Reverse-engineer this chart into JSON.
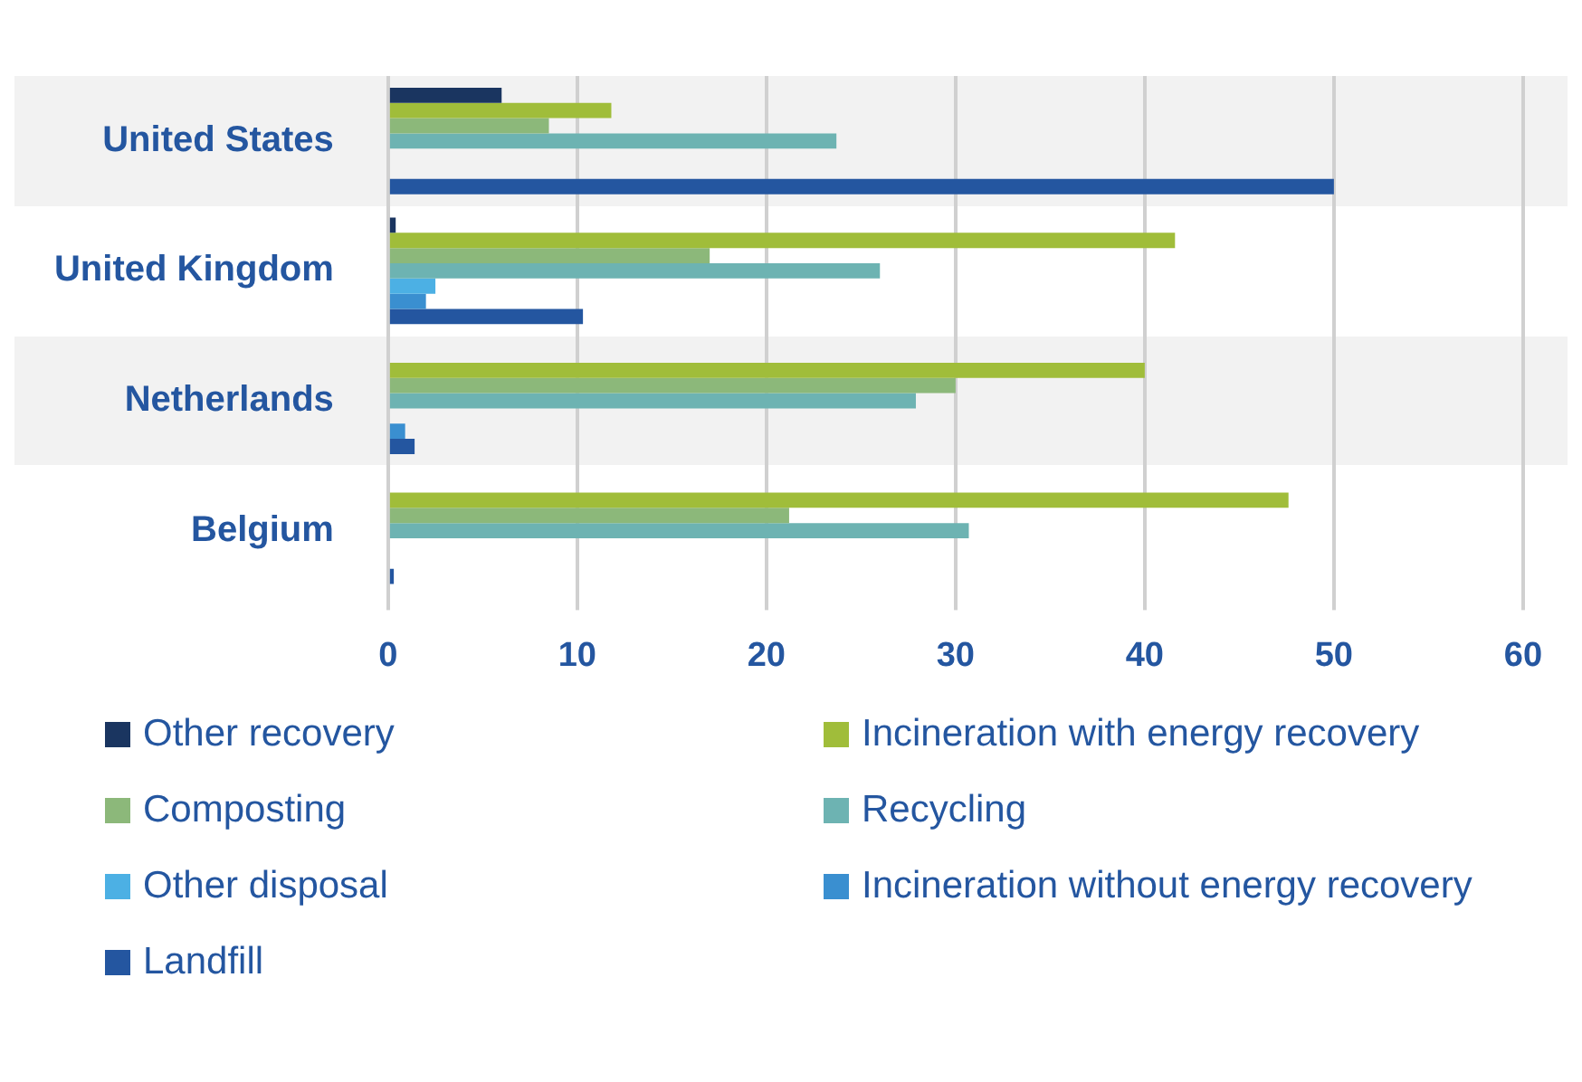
{
  "chart_data": {
    "type": "bar",
    "orientation": "horizontal",
    "categories": [
      "United States",
      "United Kingdom",
      "Netherlands",
      "Belgium"
    ],
    "series": [
      {
        "name": "Other recovery",
        "color": "#1a3560",
        "values": [
          6.0,
          0.4,
          0,
          0
        ]
      },
      {
        "name": "Incineration with energy recovery",
        "color": "#a0bd3a",
        "values": [
          11.8,
          41.6,
          40,
          47.6
        ]
      },
      {
        "name": "Composting",
        "color": "#8cb87a",
        "values": [
          8.5,
          17.0,
          30,
          21.2
        ]
      },
      {
        "name": "Recycling",
        "color": "#6db3b2",
        "values": [
          23.7,
          26.0,
          27.9,
          30.7
        ]
      },
      {
        "name": "Other disposal",
        "color": "#4cb0e4",
        "values": [
          0,
          2.5,
          0,
          0
        ]
      },
      {
        "name": "Incineration without energy recovery",
        "color": "#3a8fd0",
        "values": [
          0,
          2.0,
          0.9,
          0
        ]
      },
      {
        "name": "Landfill",
        "color": "#2456a0",
        "values": [
          50,
          10.3,
          1.4,
          0.3
        ]
      }
    ],
    "xlim": [
      0,
      60
    ],
    "xticks": [
      0,
      10,
      20,
      30,
      40,
      50,
      60
    ],
    "grid": "x",
    "legend": "bottom"
  }
}
